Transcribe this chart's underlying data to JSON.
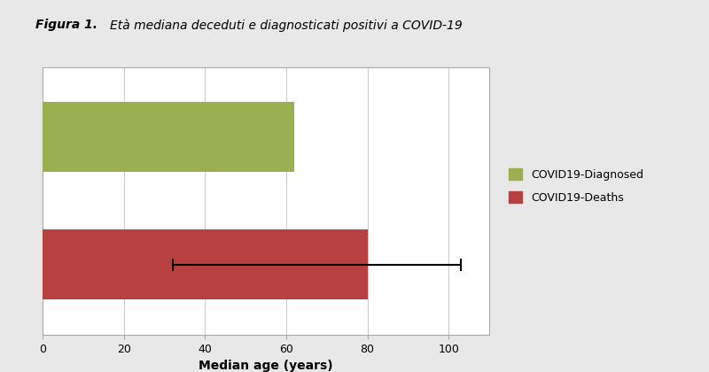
{
  "title_bold": "Figura 1.",
  "title_italic": " Età mediana deceduti e diagnosticati positivi a COVID-19",
  "categories": [
    "COVID19-Deaths",
    "COVID19-Diagnosed"
  ],
  "values": [
    80,
    62
  ],
  "colors": [
    "#b94040",
    "#9aaf50"
  ],
  "error_bar_center": 80,
  "error_bar_low": 32,
  "error_bar_high": 103,
  "error_bar_category_index": 0,
  "xlabel": "Median age (years)",
  "xlim": [
    0,
    110
  ],
  "xticks": [
    0,
    20,
    40,
    60,
    80,
    100
  ],
  "bar_height": 0.55,
  "legend_labels": [
    "COVID19-Diagnosed",
    "COVID19-Deaths"
  ],
  "legend_colors": [
    "#9aaf50",
    "#b94040"
  ],
  "background_color": "#ffffff",
  "grid_color": "#cccccc",
  "fig_bg": "#e8e8e8"
}
